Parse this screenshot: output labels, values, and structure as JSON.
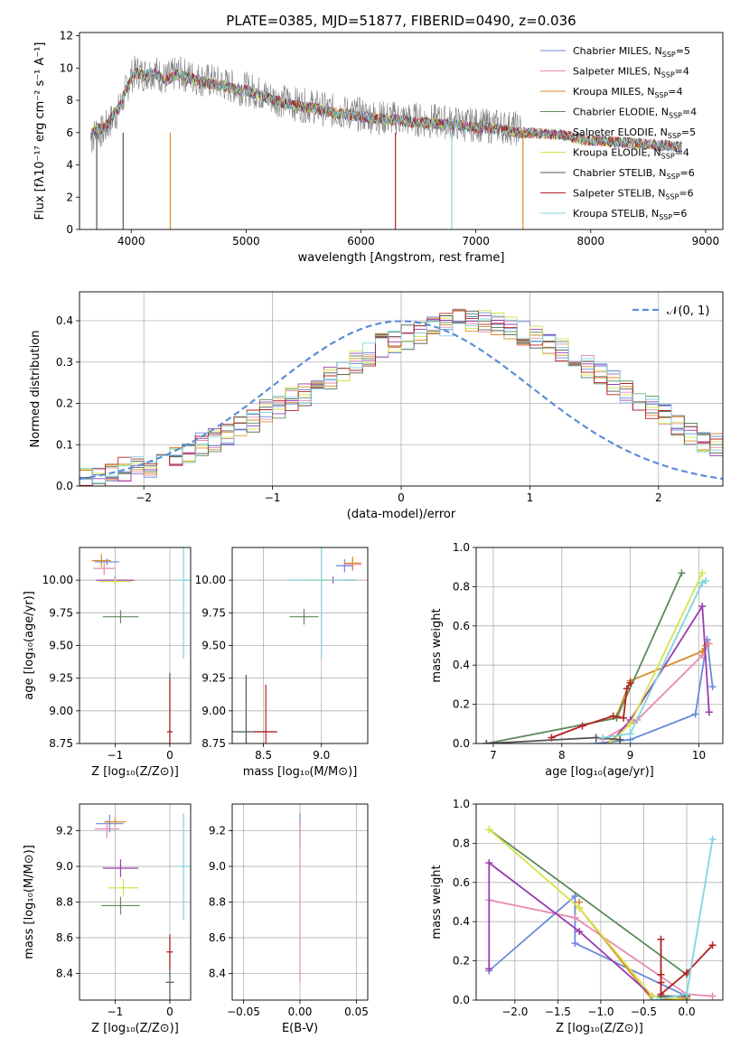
{
  "colors": [
    "#6a8ad8",
    "#e88ab0",
    "#d98b2b",
    "#5d8a5d",
    "#9b3bb0",
    "#d6e24a",
    "#555555",
    "#b22222",
    "#7fd4dc"
  ],
  "chart_data": [
    {
      "name": "spectrum",
      "type": "line",
      "title": "PLATE=0385, MJD=51877, FIBERID=0490, z=0.036",
      "xlabel": "wavelength [Angstrom, rest frame]",
      "ylabel": "Flux [fλ10⁻¹⁷ erg cm⁻² s⁻¹ A⁻¹]",
      "xlim": [
        3550,
        9150
      ],
      "ylim": [
        0,
        12.2
      ],
      "xticks": [
        4000,
        5000,
        6000,
        7000,
        8000,
        9000
      ],
      "yticks": [
        0,
        2,
        4,
        6,
        8,
        10,
        12
      ],
      "observed": {
        "x": [
          3650,
          3700,
          3750,
          3800,
          3850,
          3900,
          3950,
          4000,
          4050,
          4100,
          4200,
          4300,
          4400,
          4500,
          4600,
          4700,
          4800,
          4900,
          5000,
          5100,
          5200,
          5300,
          5400,
          5500,
          5600,
          5700,
          5800,
          5900,
          6000,
          6100,
          6200,
          6300,
          6400,
          6500,
          6600,
          6700,
          6800,
          6900,
          7000,
          7100,
          7200,
          7300,
          7400
        ],
        "y": [
          5.5,
          6.2,
          6.0,
          6.5,
          7.0,
          7.5,
          8.5,
          9.5,
          9.8,
          9.6,
          9.8,
          9.3,
          9.7,
          9.5,
          9.3,
          9.2,
          9.0,
          8.8,
          8.7,
          8.5,
          8.2,
          8.0,
          7.8,
          7.7,
          7.6,
          7.4,
          7.3,
          7.2,
          7.1,
          7.0,
          6.9,
          6.9,
          6.8,
          6.8,
          6.7,
          6.7,
          6.6,
          6.5,
          6.5,
          6.4,
          6.4,
          6.3,
          6.2
        ]
      },
      "model": {
        "x": [
          3650,
          3700,
          3750,
          3800,
          3850,
          3900,
          3950,
          4000,
          4050,
          4100,
          4200,
          4300,
          4400,
          4500,
          4600,
          4700,
          4800,
          4900,
          5000,
          5100,
          5200,
          5300,
          5400,
          5500,
          5600,
          5700,
          5800,
          5900,
          6000,
          6100,
          6200,
          6300,
          6400,
          6500,
          6600,
          6700,
          6800,
          6900,
          7000,
          7100,
          7200,
          7300,
          7400,
          7500,
          7600,
          7700,
          7800,
          7900,
          8000,
          8100,
          8200,
          8300,
          8400,
          8500,
          8600,
          8700,
          8800
        ],
        "y": [
          5.8,
          6.3,
          6.2,
          6.6,
          7.2,
          7.6,
          8.6,
          9.4,
          9.7,
          9.5,
          9.7,
          9.2,
          9.6,
          9.4,
          9.2,
          9.0,
          8.9,
          8.7,
          8.6,
          8.4,
          8.1,
          7.9,
          7.7,
          7.6,
          7.5,
          7.3,
          7.2,
          7.1,
          7.0,
          6.9,
          6.8,
          6.8,
          6.7,
          6.6,
          6.6,
          6.5,
          6.5,
          6.4,
          6.3,
          6.3,
          6.2,
          6.1,
          6.0,
          6.0,
          5.9,
          5.9,
          5.8,
          5.6,
          5.5,
          5.5,
          5.4,
          5.4,
          5.3,
          5.3,
          5.2,
          5.2,
          5.1
        ]
      },
      "legend_position": "top-right",
      "legend": [
        "Chabrier MILES, N_SSP=5",
        "Salpeter MILES, N_SSP=4",
        "Kroupa MILES, N_SSP=4",
        "Chabrier ELODIE, N_SSP=4",
        "Salpeter ELODIE, N_SSP=5",
        "Kroupa ELODIE, N_SSP=4",
        "Chabrier STELIB, N_SSP=6",
        "Salpeter STELIB, N_SSP=6",
        "Kroupa STELIB, N_SSP=6"
      ],
      "legend_parts": [
        [
          "Chabrier MILES, N",
          "SSP",
          "=5"
        ],
        [
          "Salpeter MILES, N",
          "SSP",
          "=4"
        ],
        [
          "Kroupa MILES, N",
          "SSP",
          "=4"
        ],
        [
          "Chabrier ELODIE, N",
          "SSP",
          "=4"
        ],
        [
          "Salpeter ELODIE, N",
          "SSP",
          "=5"
        ],
        [
          "Kroupa ELODIE, N",
          "SSP",
          "=4"
        ],
        [
          "Chabrier STELIB, N",
          "SSP",
          "=6"
        ],
        [
          "Salpeter STELIB, N",
          "SSP",
          "=6"
        ],
        [
          "Kroupa STELIB, N",
          "SSP",
          "=6"
        ]
      ]
    },
    {
      "name": "residual-histogram",
      "type": "bar",
      "xlabel": "(data-model)/error",
      "ylabel": "Normed distribution",
      "xlim": [
        -2.5,
        2.5
      ],
      "ylim": [
        0,
        0.47
      ],
      "xticks": [
        -2,
        -1,
        0,
        1,
        2
      ],
      "yticks": [
        0.0,
        0.1,
        0.2,
        0.3,
        0.4
      ],
      "grid": true,
      "legend": [
        "𝒩(0, 1)"
      ],
      "legend_position": "top-right",
      "bin_width": 0.1,
      "bin_start": -2.5,
      "envelope": [
        0.02,
        0.02,
        0.03,
        0.04,
        0.05,
        0.05,
        0.06,
        0.07,
        0.08,
        0.1,
        0.11,
        0.12,
        0.14,
        0.16,
        0.18,
        0.19,
        0.21,
        0.22,
        0.24,
        0.26,
        0.28,
        0.3,
        0.32,
        0.34,
        0.35,
        0.36,
        0.37,
        0.38,
        0.39,
        0.4,
        0.4,
        0.4,
        0.39,
        0.38,
        0.37,
        0.36,
        0.34,
        0.33,
        0.31,
        0.29,
        0.27,
        0.25,
        0.23,
        0.21,
        0.19,
        0.17,
        0.15,
        0.13,
        0.11,
        0.1,
        0.08
      ]
    },
    {
      "name": "age-vs-Z",
      "type": "scatter",
      "xlabel": "Z [log₁₀(Z/Z⊙)]",
      "ylabel": "age  [log₁₀(age/yr)]",
      "xlim": [
        -1.65,
        0.38
      ],
      "ylim": [
        8.75,
        10.25
      ],
      "xticks": [
        -1,
        0
      ],
      "yticks": [
        8.75,
        9.0,
        9.25,
        9.5,
        9.75,
        10.0
      ],
      "grid": true,
      "points": [
        {
          "x": -1.15,
          "y": 10.14,
          "dx": 0.45,
          "dy": 0.05
        },
        {
          "x": -1.2,
          "y": 10.09,
          "dx": 0.4,
          "dy": 0.1
        },
        {
          "x": -1.25,
          "y": 10.15,
          "dx": 0.35,
          "dy": 0.1
        },
        {
          "x": -0.9,
          "y": 9.72,
          "dx": 0.65,
          "dy": 0.1
        },
        {
          "x": -1.0,
          "y": 10.0,
          "dx": 0.7,
          "dy": 0.05
        },
        {
          "x": -1.0,
          "y": 9.99,
          "dx": 0.6,
          "dy": 0.05
        },
        {
          "x": 0.0,
          "y": 8.84,
          "dx": 0.1,
          "dy": 0.9
        },
        {
          "x": 0.0,
          "y": 8.84,
          "dx": 0.1,
          "dy": 0.8
        },
        {
          "x": 0.25,
          "y": 10.0,
          "dx": 0.3,
          "dy": 1.2
        }
      ]
    },
    {
      "name": "age-vs-mass",
      "type": "scatter",
      "xlabel": "mass [log₁₀(M/M⊙)]",
      "ylabel": "",
      "xlim": [
        8.23,
        9.4
      ],
      "ylim": [
        8.75,
        10.25
      ],
      "xticks": [
        8.5,
        9.0
      ],
      "yticks": [
        8.75,
        9.0,
        9.25,
        9.5,
        9.75,
        10.0
      ],
      "grid": true,
      "points": [
        {
          "x": 9.2,
          "y": 10.11,
          "dx": 0.15,
          "dy": 0.1
        },
        {
          "x": 9.27,
          "y": 10.12,
          "dx": 0.15,
          "dy": 0.1
        },
        {
          "x": 9.27,
          "y": 10.13,
          "dx": 0.15,
          "dy": 0.1
        },
        {
          "x": 8.85,
          "y": 9.72,
          "dx": 0.25,
          "dy": 0.12
        },
        {
          "x": 9.1,
          "y": 10.0,
          "dx": 0.4,
          "dy": 0.05
        },
        {
          "x": 9.0,
          "y": 10.0,
          "dx": 0.4,
          "dy": 0.05
        },
        {
          "x": 8.35,
          "y": 8.84,
          "dx": 0.5,
          "dy": 0.87
        },
        {
          "x": 8.52,
          "y": 8.84,
          "dx": 0.2,
          "dy": 0.72
        },
        {
          "x": 9.0,
          "y": 10.0,
          "dx": 0.6,
          "dy": 1.2
        }
      ]
    },
    {
      "name": "weight-vs-age",
      "type": "line",
      "xlabel": "age  [log₁₀(age/yr)]",
      "ylabel": "mass weight",
      "xlim": [
        6.75,
        10.35
      ],
      "ylim": [
        0,
        1
      ],
      "xticks": [
        7,
        8,
        9,
        10
      ],
      "yticks": [
        0.0,
        0.2,
        0.4,
        0.6,
        0.8,
        1.0
      ],
      "grid": true,
      "series": [
        {
          "x": [
            8.5,
            9.0,
            9.95,
            10.12,
            10.2
          ],
          "y": [
            0.0,
            0.02,
            0.15,
            0.53,
            0.29
          ]
        },
        {
          "x": [
            8.6,
            9.1,
            10.05,
            10.1,
            10.15
          ],
          "y": [
            0.02,
            0.12,
            0.45,
            0.5,
            0.51
          ]
        },
        {
          "x": [
            8.8,
            9.0,
            10.05,
            10.1
          ],
          "y": [
            0.14,
            0.32,
            0.47,
            0.5
          ]
        },
        {
          "x": [
            6.9,
            8.8,
            9.75
          ],
          "y": [
            0.0,
            0.13,
            0.87
          ]
        },
        {
          "x": [
            8.7,
            9.0,
            10.05,
            10.15
          ],
          "y": [
            0.0,
            0.12,
            0.7,
            0.16
          ]
        },
        {
          "x": [
            8.7,
            9.0,
            10.05
          ],
          "y": [
            0.0,
            0.1,
            0.87
          ]
        },
        {
          "x": [
            6.9,
            8.5,
            8.85
          ],
          "y": [
            0.0,
            0.03,
            0.02
          ]
        },
        {
          "x": [
            7.85,
            8.3,
            8.75,
            8.9,
            8.95,
            9.0
          ],
          "y": [
            0.03,
            0.09,
            0.14,
            0.13,
            0.28,
            0.31
          ]
        },
        {
          "x": [
            8.6,
            9.0,
            10.05,
            10.1
          ],
          "y": [
            0.03,
            0.05,
            0.82,
            0.83
          ]
        }
      ]
    },
    {
      "name": "mass-vs-Z",
      "type": "scatter",
      "xlabel": "Z [log₁₀(Z/Z⊙)]",
      "ylabel": "mass [log₁₀(M/M⊙)]",
      "xlim": [
        -1.65,
        0.38
      ],
      "ylim": [
        8.25,
        9.35
      ],
      "xticks": [
        -1,
        0
      ],
      "yticks": [
        8.4,
        8.6,
        8.8,
        9.0,
        9.2
      ],
      "grid": true,
      "points": [
        {
          "x": -1.1,
          "y": 9.24,
          "dx": 0.5,
          "dy": 0.1
        },
        {
          "x": -1.15,
          "y": 9.21,
          "dx": 0.45,
          "dy": 0.1
        },
        {
          "x": -1.0,
          "y": 9.25,
          "dx": 0.4,
          "dy": 0.05
        },
        {
          "x": -0.9,
          "y": 8.78,
          "dx": 0.7,
          "dy": 0.1
        },
        {
          "x": -0.9,
          "y": 8.99,
          "dx": 0.65,
          "dy": 0.1
        },
        {
          "x": -0.85,
          "y": 8.88,
          "dx": 0.55,
          "dy": 0.1
        },
        {
          "x": 0.0,
          "y": 8.35,
          "dx": 0.15,
          "dy": 0.5
        },
        {
          "x": 0.0,
          "y": 8.52,
          "dx": 0.12,
          "dy": 0.2
        },
        {
          "x": 0.25,
          "y": 9.0,
          "dx": 0.25,
          "dy": 0.6
        }
      ]
    },
    {
      "name": "mass-vs-EBV",
      "type": "scatter",
      "xlabel": "E(B-V)",
      "ylabel": "",
      "xlim": [
        -0.06,
        0.06
      ],
      "ylim": [
        8.25,
        9.35
      ],
      "xticks": [
        -0.05,
        0.0,
        0.05
      ],
      "yticks": [
        8.4,
        8.6,
        8.8,
        9.0,
        9.2
      ],
      "grid": true,
      "points": [
        {
          "x": 0.0,
          "y": 9.2,
          "dx": 0.0,
          "dy": 0.2
        },
        {
          "x": 0.0,
          "y": 8.8,
          "dx": 0.0,
          "dy": 0.9
        }
      ]
    },
    {
      "name": "weight-vs-Z",
      "type": "line",
      "xlabel": "Z [log₁₀(Z/Z⊙)]",
      "ylabel": "mass weight",
      "xlim": [
        -2.45,
        0.42
      ],
      "ylim": [
        0,
        1
      ],
      "xticks": [
        -2.0,
        -1.5,
        -1.0,
        -0.5,
        0.0
      ],
      "yticks": [
        0.0,
        0.2,
        0.4,
        0.6,
        0.8,
        1.0
      ],
      "grid": true,
      "series": [
        {
          "x": [
            -2.3,
            -1.3,
            -1.3,
            0.0,
            0.0
          ],
          "y": [
            0.15,
            0.53,
            0.29,
            0.02,
            0.03
          ]
        },
        {
          "x": [
            -2.3,
            -1.3,
            0.0,
            0.3
          ],
          "y": [
            0.51,
            0.42,
            0.03,
            0.02
          ]
        },
        {
          "x": [
            -1.25,
            -1.25,
            -0.4,
            0.0
          ],
          "y": [
            0.5,
            0.47,
            0.0,
            0.01
          ]
        },
        {
          "x": [
            -2.3,
            0.0
          ],
          "y": [
            0.87,
            0.13
          ]
        },
        {
          "x": [
            -2.3,
            -2.3,
            -1.25,
            -0.4,
            0.0
          ],
          "y": [
            0.16,
            0.7,
            0.35,
            0.02,
            0.0
          ]
        },
        {
          "x": [
            -2.3,
            -1.25,
            -0.4,
            0.0
          ],
          "y": [
            0.87,
            0.47,
            0.02,
            0.0
          ]
        },
        {
          "x": [
            -0.3,
            0.0
          ],
          "y": [
            0.02,
            0.02
          ]
        },
        {
          "x": [
            -0.3,
            -0.3,
            -0.3,
            -0.3,
            0.0,
            0.3
          ],
          "y": [
            0.31,
            0.13,
            0.09,
            0.03,
            0.14,
            0.28
          ]
        },
        {
          "x": [
            -0.4,
            0.0,
            0.3
          ],
          "y": [
            0.0,
            0.03,
            0.82
          ]
        }
      ]
    }
  ]
}
